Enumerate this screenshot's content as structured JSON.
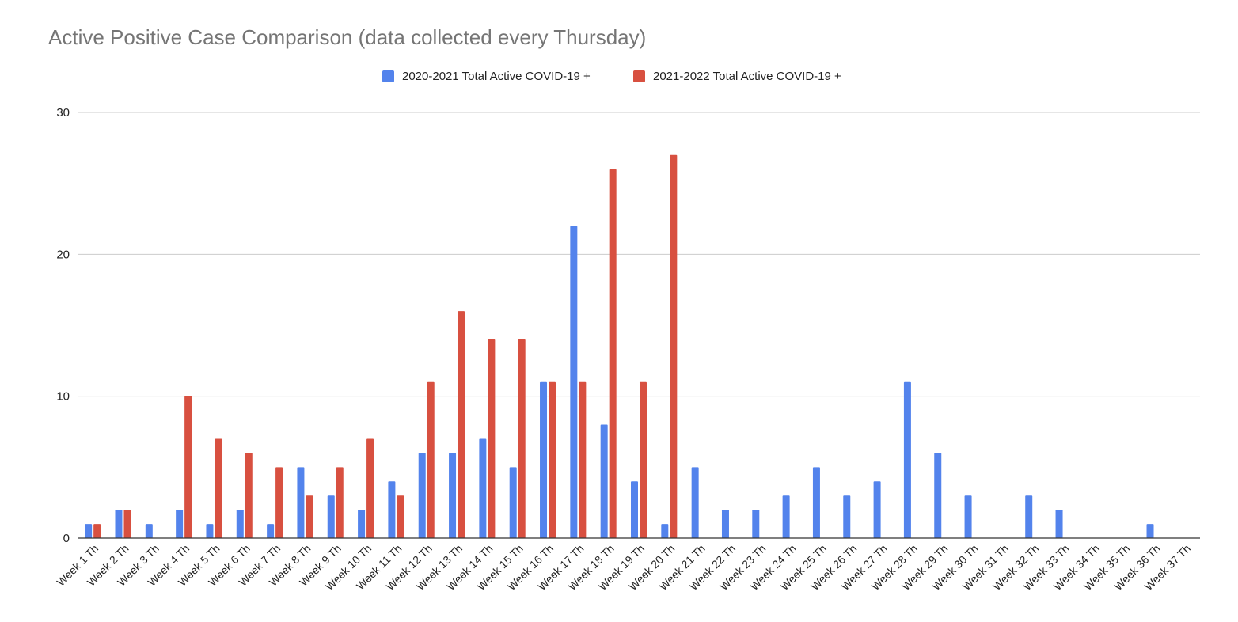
{
  "chart_data": {
    "type": "bar",
    "title": "Active Positive Case Comparison (data collected every Thursday)",
    "xlabel": "",
    "ylabel": "",
    "ylim": [
      0,
      30
    ],
    "yticks": [
      0,
      10,
      20,
      30
    ],
    "grid": true,
    "legend_position": "top-center",
    "categories": [
      "Week 1 Th",
      "Week 2 Th",
      "Week 3 Th",
      "Week 4 Th",
      "Week 5 Th",
      "Week 6 Th",
      "Week 7 Th",
      "Week 8 Th",
      "Week 9 Th",
      "Week 10 Th",
      "Week 11 Th",
      "Week 12 Th",
      "Week 13 Th",
      "Week 14 Th",
      "Week 15 Th",
      "Week 16 Th",
      "Week 17 Th",
      "Week 18 Th",
      "Week 19 Th",
      "Week 20 Th",
      "Week 21 Th",
      "Week 22 Th",
      "Week 23 Th",
      "Week 24 Th",
      "Week 25 Th",
      "Week 26 Th",
      "Week 27 Th",
      "Week 28 Th",
      "Week 29 Th",
      "Week 30 Th",
      "Week 31 Th",
      "Week 32 Th",
      "Week 33 Th",
      "Week 34 Th",
      "Week 35 Th",
      "Week 36 Th",
      "Week 37 Th"
    ],
    "series": [
      {
        "name": "2020-2021 Total Active COVID-19 +",
        "color": "#5383EC",
        "values": [
          1,
          2,
          1,
          2,
          1,
          2,
          1,
          5,
          3,
          2,
          4,
          6,
          6,
          7,
          5,
          11,
          22,
          8,
          4,
          1,
          5,
          2,
          2,
          3,
          5,
          3,
          4,
          11,
          6,
          3,
          0,
          3,
          2,
          0,
          0,
          1,
          0
        ]
      },
      {
        "name": "2021-2022 Total Active COVID-19 +",
        "color": "#D85040",
        "values": [
          1,
          2,
          0,
          10,
          7,
          6,
          5,
          3,
          5,
          7,
          3,
          11,
          16,
          14,
          14,
          11,
          11,
          26,
          11,
          27,
          0,
          0,
          0,
          0,
          0,
          0,
          0,
          0,
          0,
          0,
          0,
          0,
          0,
          0,
          0,
          0,
          0
        ]
      }
    ]
  }
}
